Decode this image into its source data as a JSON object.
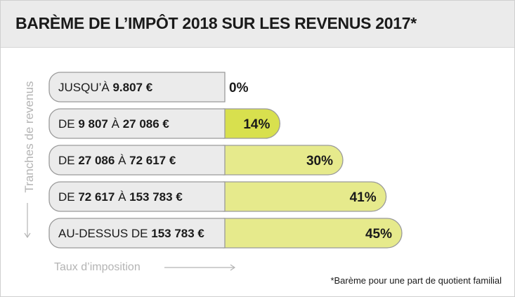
{
  "header": {
    "title": "BARÈME DE L’IMPÔT 2018 SUR LES REVENUS 2017*"
  },
  "axes": {
    "y_label": "Tranches de revenus",
    "x_label": "Taux d’imposition"
  },
  "footnote": "*Barème pour une part de quotient familial",
  "colors": {
    "label_box": "#ebebeb",
    "label_border": "#9a9a9a",
    "bar_highlight": "#d8e04e",
    "bar_light": "#e6ea8c",
    "axis_gray": "#b4b4b4"
  },
  "chart_data": {
    "type": "bar",
    "orientation": "horizontal",
    "categories": [
      [
        {
          "t": "JUSQU’À ",
          "b": false
        },
        {
          "t": "9.807 €",
          "b": true
        }
      ],
      [
        {
          "t": "DE ",
          "b": false
        },
        {
          "t": "9 807",
          "b": true
        },
        {
          "t": " À ",
          "b": false
        },
        {
          "t": "27 086 €",
          "b": true
        }
      ],
      [
        {
          "t": "DE ",
          "b": false
        },
        {
          "t": "27 086",
          "b": true
        },
        {
          "t": " À ",
          "b": false
        },
        {
          "t": "72 617 €",
          "b": true
        }
      ],
      [
        {
          "t": "DE ",
          "b": false
        },
        {
          "t": "72 617",
          "b": true
        },
        {
          "t": " À ",
          "b": false
        },
        {
          "t": "153 783 €",
          "b": true
        }
      ],
      [
        {
          "t": "AU-DESSUS DE ",
          "b": false
        },
        {
          "t": "153 783 €",
          "b": true
        }
      ]
    ],
    "values": [
      0,
      14,
      30,
      41,
      45
    ],
    "value_labels": [
      "0%",
      "14%",
      "30%",
      "41%",
      "45%"
    ],
    "xlim": [
      0,
      45
    ],
    "grid": false,
    "legend": "none"
  }
}
